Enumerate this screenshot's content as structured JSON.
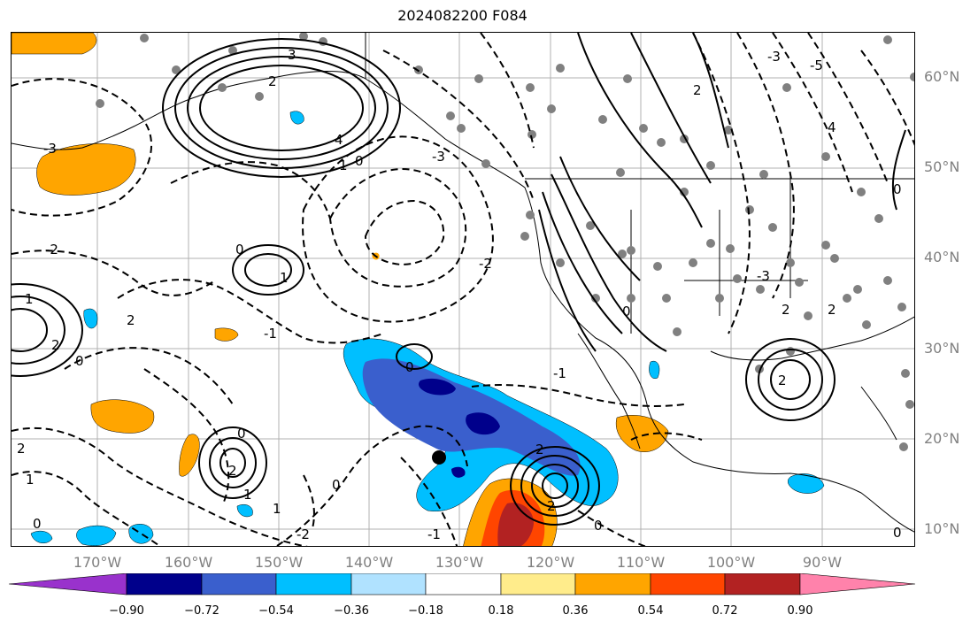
{
  "title": "2024082200 F084",
  "map": {
    "lat_labels": [
      {
        "label": "60°N",
        "lat": 60
      },
      {
        "label": "50°N",
        "lat": 50
      },
      {
        "label": "40°N",
        "lat": 40
      },
      {
        "label": "30°N",
        "lat": 30
      },
      {
        "label": "20°N",
        "lat": 20
      },
      {
        "label": "10°N",
        "lat": 10
      }
    ],
    "lon_labels": [
      {
        "label": "170°W",
        "lon": -170
      },
      {
        "label": "160°W",
        "lon": -160
      },
      {
        "label": "150°W",
        "lon": -150
      },
      {
        "label": "140°W",
        "lon": -140
      },
      {
        "label": "130°W",
        "lon": -130
      },
      {
        "label": "120°W",
        "lon": -120
      },
      {
        "label": "110°W",
        "lon": -110
      },
      {
        "label": "100°W",
        "lon": -100
      },
      {
        "label": "90°W",
        "lon": -90
      }
    ],
    "contour_labels": [
      "3",
      "2",
      "4",
      "1",
      "0",
      "-1",
      "-2",
      "-3",
      "-5"
    ],
    "fill_colors": {
      "light_blue": "#00bfff",
      "mid_blue": "#3a5fcd",
      "navy": "#00008b",
      "orange": "#ffa500",
      "red_orange": "#ff4500",
      "dark_red": "#b22222"
    }
  },
  "colorbar": {
    "ticks": [
      "−0.90",
      "−0.72",
      "−0.54",
      "−0.36",
      "−0.18",
      "0.18",
      "0.36",
      "0.54",
      "0.72",
      "0.90"
    ],
    "colors": [
      "#9932cc",
      "#00008b",
      "#3a5fcd",
      "#00bfff",
      "#b0e2ff",
      "#ffffff",
      "#ffec8b",
      "#ffa500",
      "#ff4500",
      "#b22222",
      "#ff82ab"
    ]
  }
}
